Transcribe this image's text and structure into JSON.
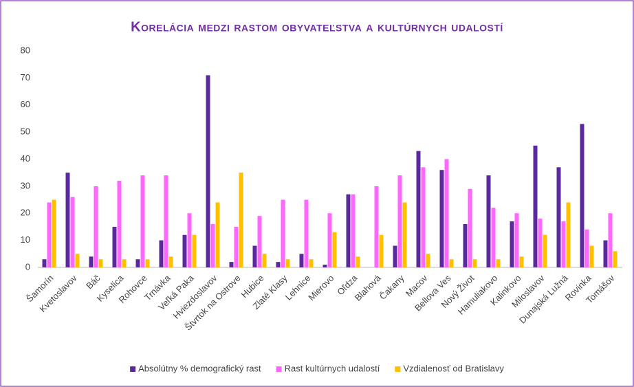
{
  "chart_data": {
    "type": "bar",
    "title": "Korelácia medzi rastom obyvateľstva a kultúrnych udalostí",
    "categories": [
      "Šamorín",
      "Kvetoslavov",
      "Báč",
      "Kyselica",
      "Rohovce",
      "Trnávka",
      "Veľká Paka",
      "Hviezdoslavov",
      "Štvrtok na Ostrove",
      "Hubice",
      "Zlaté Klasy",
      "Lehnice",
      "Mierovo",
      "Oľdza",
      "Blahová",
      "Čakany",
      "Macov",
      "Bellova Ves",
      "Nový Život",
      "Hamuliakovo",
      "Kalinkovo",
      "Miloslavov",
      "Dunajská Lužná",
      "Rovinka",
      "Tomášov"
    ],
    "series": [
      {
        "name": "Absolútny % demografický rast",
        "color": "#5b2a9a",
        "values": [
          3,
          35,
          4,
          15,
          3,
          10,
          12,
          71,
          2,
          8,
          2,
          5,
          1,
          27,
          0,
          8,
          43,
          36,
          16,
          34,
          17,
          45,
          37,
          53,
          10
        ]
      },
      {
        "name": "Rast kultúrnych udalostí",
        "color": "#ff66ff",
        "values": [
          24,
          26,
          30,
          32,
          34,
          34,
          20,
          16,
          15,
          19,
          25,
          25,
          20,
          27,
          30,
          34,
          37,
          40,
          29,
          22,
          20,
          18,
          17,
          14,
          20
        ]
      },
      {
        "name": "Vzdialenosť od Bratislavy",
        "color": "#ffc000",
        "values": [
          25,
          5,
          3,
          3,
          3,
          4,
          12,
          24,
          35,
          5,
          3,
          3,
          13,
          4,
          12,
          24,
          5,
          3,
          3,
          3,
          4,
          12,
          24,
          8,
          6
        ]
      }
    ],
    "ylim": [
      0,
      80
    ],
    "yticks": [
      0,
      10,
      20,
      30,
      40,
      50,
      60,
      70,
      80
    ],
    "grid": false,
    "legend": "bottom"
  }
}
